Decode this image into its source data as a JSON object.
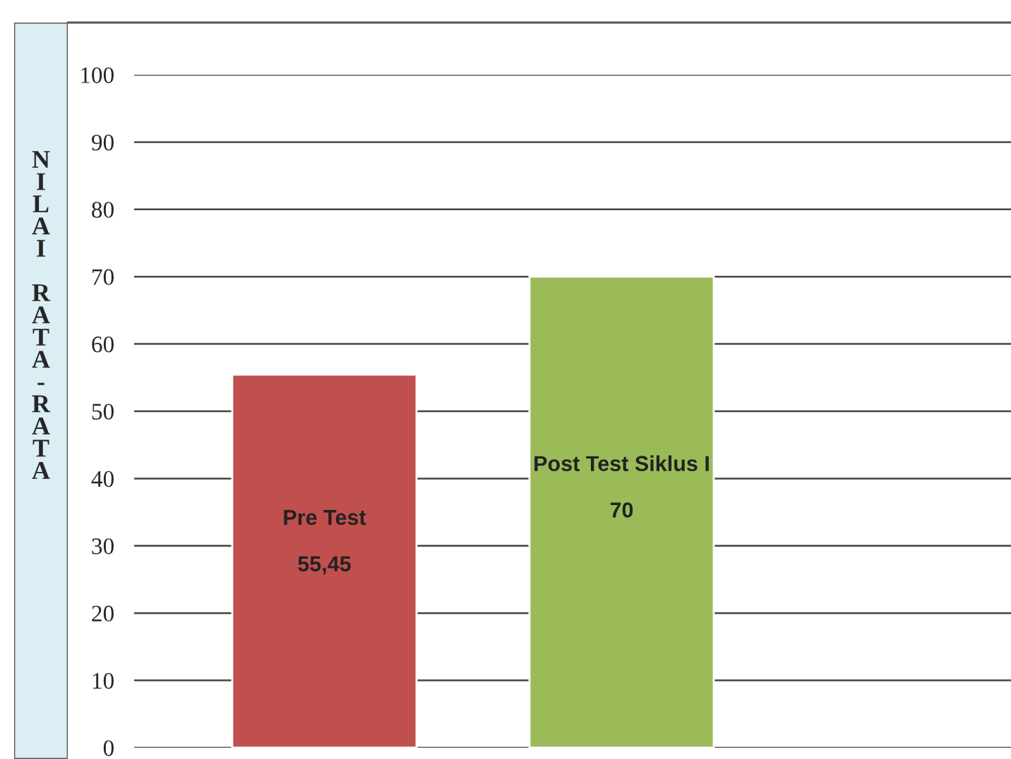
{
  "chart_data": {
    "type": "bar",
    "ylabel": "NILAI RATA-RATA",
    "categories": [
      "Pre Test",
      "Post Test Siklus I"
    ],
    "values": [
      55.45,
      70
    ],
    "value_labels": [
      "55,45",
      "70"
    ],
    "colors": [
      "#c0504d",
      "#9bbb59"
    ],
    "ylim": [
      0,
      100
    ],
    "yticks": [
      0,
      10,
      20,
      30,
      40,
      50,
      60,
      70,
      80,
      90,
      100
    ],
    "grid": "y",
    "tick_labels": "y",
    "legend": false
  }
}
